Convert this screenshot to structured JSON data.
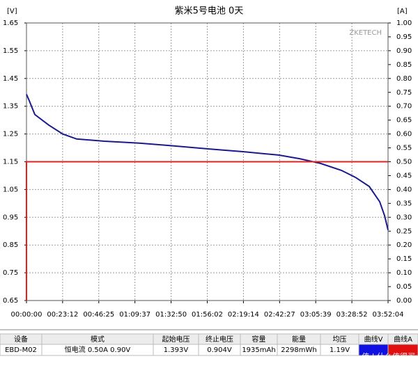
{
  "chart_data": {
    "type": "line",
    "title": "紫米5号电池 0天",
    "y_label": "[V]",
    "y2_label": "[A]",
    "watermark": "ZKETECH",
    "xlim": [
      0,
      13924
    ],
    "xticks": [
      {
        "value": 0,
        "label": "00:00:00"
      },
      {
        "value": 1392,
        "label": "00:23:12"
      },
      {
        "value": 2785,
        "label": "00:46:25"
      },
      {
        "value": 4177,
        "label": "01:09:37"
      },
      {
        "value": 5570,
        "label": "01:32:50"
      },
      {
        "value": 6962,
        "label": "01:56:02"
      },
      {
        "value": 8354,
        "label": "02:19:14"
      },
      {
        "value": 9747,
        "label": "02:42:27"
      },
      {
        "value": 11139,
        "label": "03:05:39"
      },
      {
        "value": 12532,
        "label": "03:28:52"
      },
      {
        "value": 13924,
        "label": "03:52:04"
      }
    ],
    "ylim": [
      0.65,
      1.65
    ],
    "yticks": [
      0.65,
      0.75,
      0.85,
      0.95,
      1.05,
      1.15,
      1.25,
      1.35,
      1.45,
      1.55,
      1.65
    ],
    "y2lim": [
      0,
      1
    ],
    "y2ticks": [
      {
        "value": 0,
        "label": "0.00"
      },
      {
        "value": 0.05,
        "label": "0.05"
      },
      {
        "value": 0.1,
        "label": "0.10"
      },
      {
        "value": 0.15,
        "label": "0.15"
      },
      {
        "value": 0.2,
        "label": "0.20"
      },
      {
        "value": 0.25,
        "label": "0.25"
      },
      {
        "value": 0.3,
        "label": "0.30"
      },
      {
        "value": 0.35,
        "label": "0.35"
      },
      {
        "value": 0.4,
        "label": "0.40"
      },
      {
        "value": 0.45,
        "label": "0.45"
      },
      {
        "value": 0.5,
        "label": "0.50"
      },
      {
        "value": 0.55,
        "label": "0.55"
      },
      {
        "value": 0.6,
        "label": "0.60"
      },
      {
        "value": 0.65,
        "label": "0.65"
      },
      {
        "value": 0.7,
        "label": "0.70"
      },
      {
        "value": 0.75,
        "label": "0.75"
      },
      {
        "value": 0.8,
        "label": "0.80"
      },
      {
        "value": 0.85,
        "label": "0.85"
      },
      {
        "value": 0.9,
        "label": "0.90"
      },
      {
        "value": 0.95,
        "label": "0.95"
      },
      {
        "value": 1,
        "label": "1.00"
      }
    ],
    "grid": true,
    "series": [
      {
        "color": "#1a1a8c",
        "x": [
          0,
          107,
          322,
          859,
          1395,
          1932,
          3005,
          4346,
          5688,
          7029,
          8371,
          9712,
          10517,
          11322,
          12127,
          12663,
          13200,
          13602,
          13790,
          13924
        ],
        "values": [
          1.393,
          1.37,
          1.32,
          1.282,
          1.25,
          1.232,
          1.224,
          1.217,
          1.207,
          1.196,
          1.186,
          1.174,
          1.161,
          1.144,
          1.119,
          1.094,
          1.061,
          1.006,
          0.956,
          0.904
        ]
      },
      {
        "color": "#e02020",
        "axis": "y2",
        "x": [
          0,
          0,
          13924
        ],
        "values": [
          0,
          0.5,
          0.5
        ]
      }
    ]
  },
  "table": {
    "headers": [
      "设备",
      "模式",
      "起始电压",
      "终止电压",
      "容量",
      "能量",
      "均压",
      "曲线V",
      "曲线A"
    ],
    "rows": [
      [
        "EBD-M02",
        "恒电流  0.50A  0.90V",
        "1.393V",
        "0.904V",
        "1935mAh",
        "2298mWh",
        "1.19V",
        "",
        ""
      ]
    ]
  },
  "watermark": "值 | 什么值得买"
}
